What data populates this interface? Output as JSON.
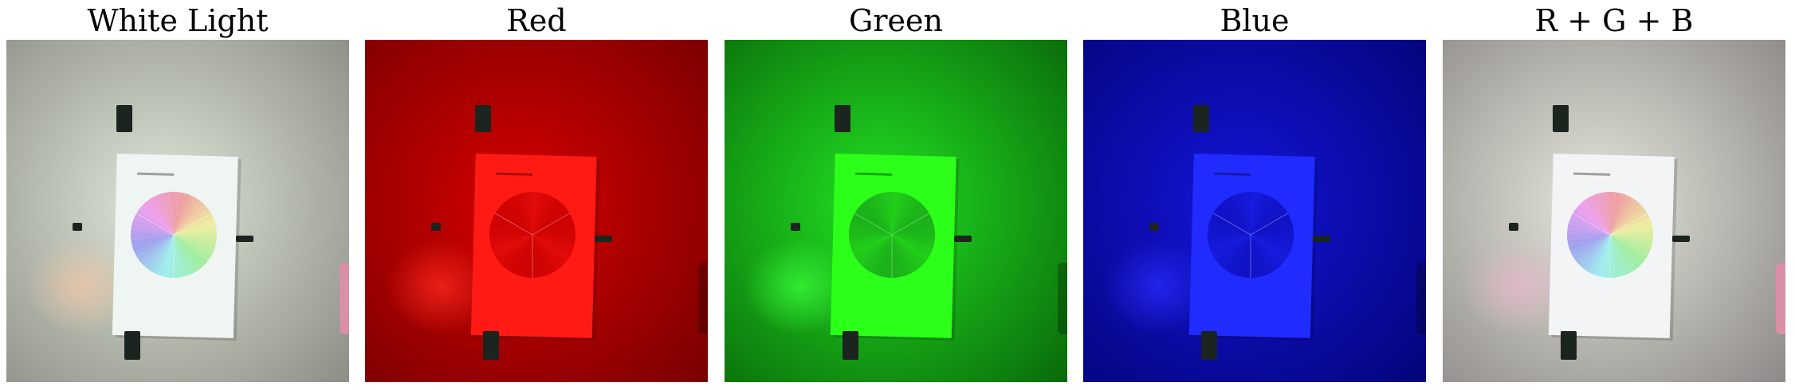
{
  "figure": {
    "panels": [
      {
        "title": "White Light",
        "channel": "white",
        "colors": {
          "bg_center": "#dfe6d8",
          "bg_edge": "#8c8f86",
          "paper": "#eef5f2",
          "wheel_tint": "none",
          "glow": "#f1c6a6"
        }
      },
      {
        "title": "Red",
        "channel": "red",
        "colors": {
          "bg_center": "#d40000",
          "bg_edge": "#7a0000",
          "paper": "#ff1a14",
          "wheel_tint": "#c80000",
          "glow": "#ff2a20"
        }
      },
      {
        "title": "Green",
        "channel": "green",
        "colors": {
          "bg_center": "#22e022",
          "bg_edge": "#0a6a0a",
          "paper": "#2cff1a",
          "wheel_tint": "#1aa81a",
          "glow": "#3aff3a"
        }
      },
      {
        "title": "Blue",
        "channel": "blue",
        "colors": {
          "bg_center": "#1414d8",
          "bg_edge": "#04047a",
          "paper": "#1f2bff",
          "wheel_tint": "#1010c0",
          "glow": "#2a2aff"
        }
      },
      {
        "title": "R + G + B",
        "channel": "combined",
        "colors": {
          "bg_center": "#e4e6dc",
          "bg_edge": "#8e8a88",
          "paper": "#f2f4f6",
          "wheel_tint": "none",
          "glow": "#e8b8c8"
        }
      }
    ]
  }
}
